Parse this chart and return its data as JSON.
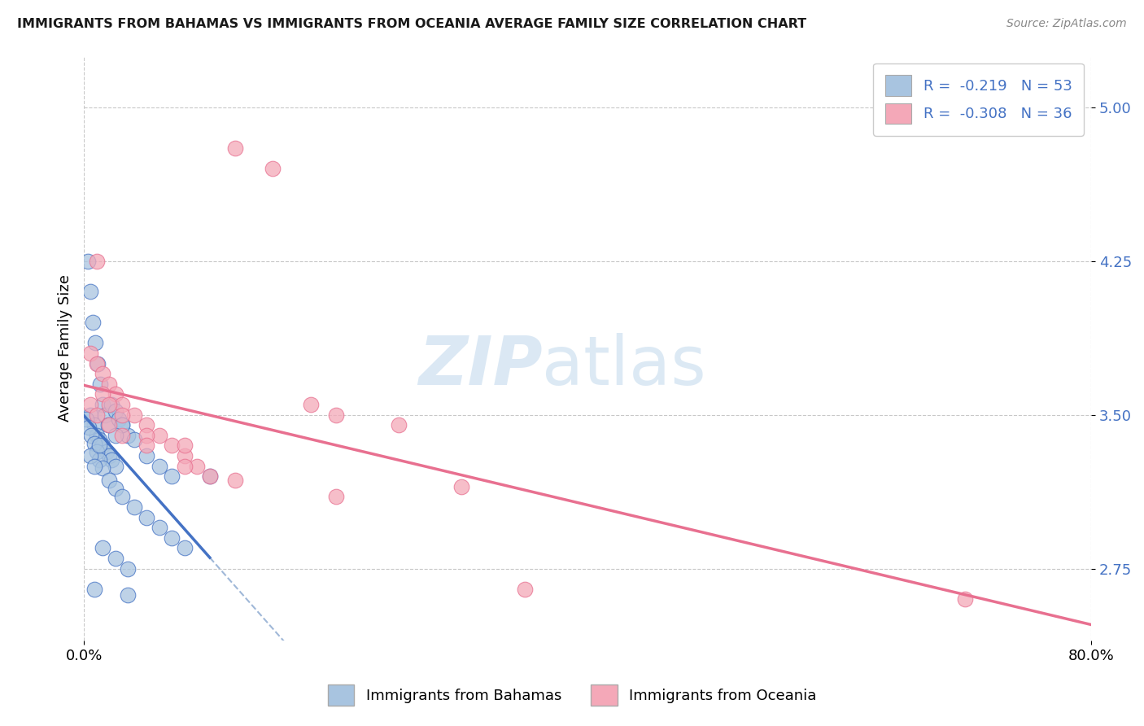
{
  "title": "IMMIGRANTS FROM BAHAMAS VS IMMIGRANTS FROM OCEANIA AVERAGE FAMILY SIZE CORRELATION CHART",
  "source": "Source: ZipAtlas.com",
  "ylabel": "Average Family Size",
  "xlim": [
    0.0,
    80.0
  ],
  "ylim": [
    2.4,
    5.25
  ],
  "yticks": [
    2.75,
    3.5,
    4.25,
    5.0
  ],
  "xticks": [
    0.0,
    80.0
  ],
  "xtick_labels": [
    "0.0%",
    "80.0%"
  ],
  "ytick_color": "#4472c4",
  "background_color": "#ffffff",
  "grid_color": "#c8c8c8",
  "series1_color": "#a8c4e0",
  "series2_color": "#f4a8b8",
  "series1_label": "Immigrants from Bahamas",
  "series2_label": "Immigrants from Oceania",
  "trend1_color": "#4472c4",
  "trend2_color": "#e87090",
  "dash_color": "#a0b8d8",
  "scatter1_x": [
    0.5,
    0.8,
    1.0,
    1.2,
    1.5,
    1.8,
    2.0,
    2.2,
    2.5,
    0.3,
    0.5,
    0.7,
    0.9,
    1.1,
    1.3,
    1.5,
    1.7,
    1.9,
    2.2,
    2.5,
    2.8,
    3.0,
    3.5,
    4.0,
    5.0,
    6.0,
    7.0,
    0.2,
    0.4,
    0.6,
    0.8,
    1.0,
    1.2,
    1.5,
    2.0,
    2.5,
    3.0,
    4.0,
    5.0,
    6.0,
    7.0,
    8.0,
    1.5,
    2.5,
    3.5,
    0.5,
    0.8,
    10.0,
    3.0,
    2.5,
    1.2,
    0.8,
    3.5
  ],
  "scatter1_y": [
    3.5,
    3.45,
    3.4,
    3.38,
    3.35,
    3.32,
    3.3,
    3.28,
    3.25,
    4.25,
    4.1,
    3.95,
    3.85,
    3.75,
    3.65,
    3.55,
    3.5,
    3.45,
    3.55,
    3.52,
    3.48,
    3.45,
    3.4,
    3.38,
    3.3,
    3.25,
    3.2,
    3.48,
    3.44,
    3.4,
    3.36,
    3.32,
    3.28,
    3.24,
    3.18,
    3.14,
    3.1,
    3.05,
    3.0,
    2.95,
    2.9,
    2.85,
    2.85,
    2.8,
    2.75,
    3.3,
    3.25,
    3.2,
    3.45,
    3.4,
    3.35,
    2.65,
    2.62
  ],
  "scatter2_x": [
    0.5,
    1.0,
    1.5,
    2.0,
    2.5,
    3.0,
    4.0,
    5.0,
    6.0,
    7.0,
    8.0,
    9.0,
    10.0,
    12.0,
    15.0,
    18.0,
    20.0,
    25.0,
    1.0,
    1.5,
    2.0,
    3.0,
    5.0,
    8.0,
    30.0,
    35.0,
    0.5,
    1.0,
    2.0,
    3.0,
    5.0,
    8.0,
    12.0,
    20.0,
    70.0
  ],
  "scatter2_y": [
    3.8,
    3.75,
    3.7,
    3.65,
    3.6,
    3.55,
    3.5,
    3.45,
    3.4,
    3.35,
    3.3,
    3.25,
    3.2,
    4.8,
    4.7,
    3.55,
    3.5,
    3.45,
    4.25,
    3.6,
    3.55,
    3.5,
    3.4,
    3.35,
    3.15,
    2.65,
    3.55,
    3.5,
    3.45,
    3.4,
    3.35,
    3.25,
    3.18,
    3.1,
    2.6
  ]
}
